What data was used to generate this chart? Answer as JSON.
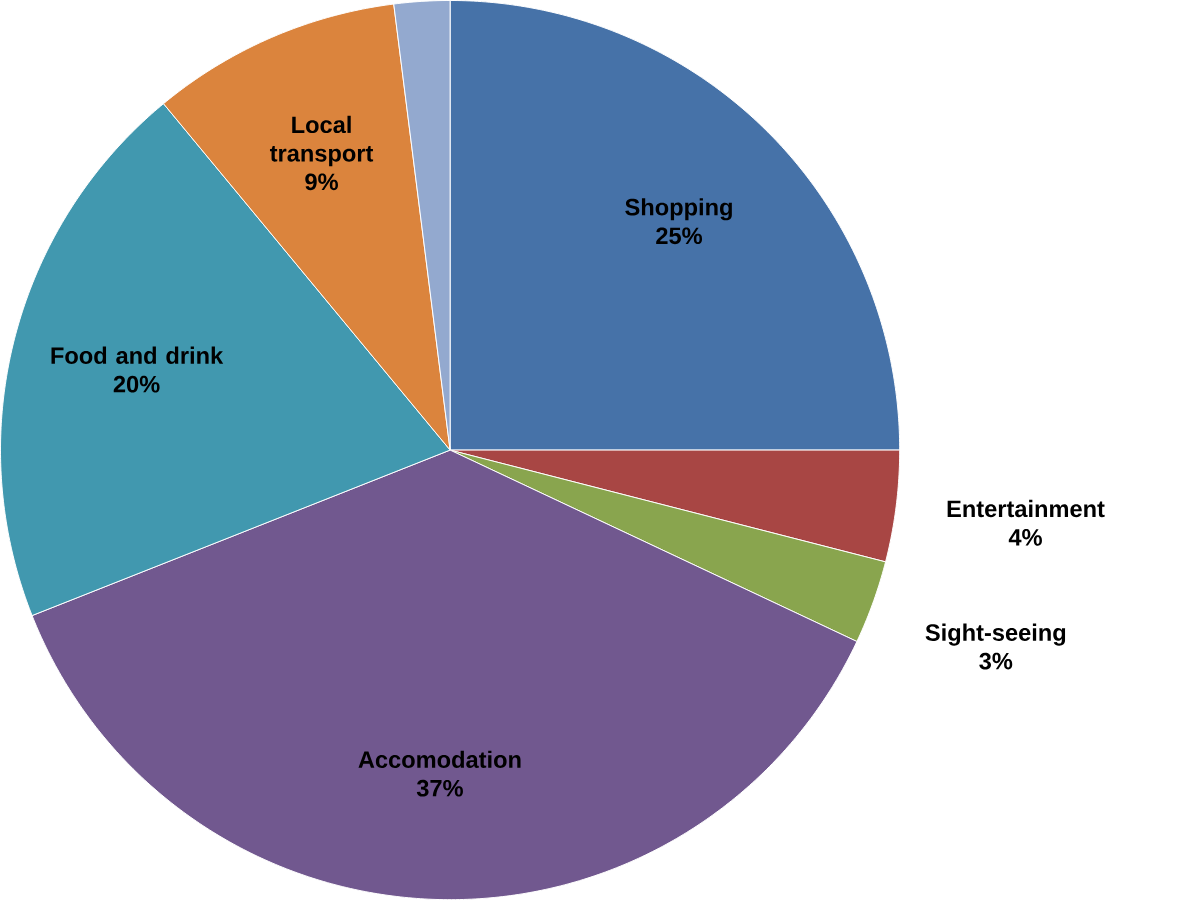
{
  "chart_data": {
    "type": "pie",
    "categories": [
      "Shopping",
      "Entertainment",
      "Sight-seeing",
      "Accomodation",
      "Food and drink",
      "Local transport",
      null
    ],
    "values": [
      25,
      4,
      3,
      37,
      20,
      9,
      2
    ],
    "value_labels": [
      "25%",
      "4%",
      "3%",
      "37%",
      "20%",
      "9%",
      null
    ],
    "colors": [
      "#4672a8",
      "#a84644",
      "#89a54e",
      "#71588f",
      "#4198af",
      "#db843d",
      "#93a9cf"
    ]
  }
}
